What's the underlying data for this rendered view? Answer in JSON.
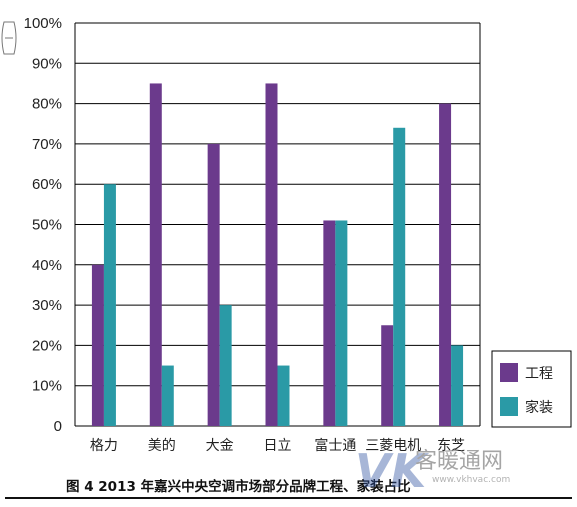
{
  "chart_data": {
    "type": "bar",
    "categories": [
      "格力",
      "美的",
      "大金",
      "日立",
      "富士通",
      "三菱电机",
      "东芝"
    ],
    "series": [
      {
        "name": "工程",
        "color": "#6b3a8c",
        "values": [
          40,
          85,
          70,
          85,
          51,
          25,
          80
        ]
      },
      {
        "name": "家装",
        "color": "#2a9aa6",
        "values": [
          60,
          15,
          30,
          15,
          51,
          74,
          20
        ]
      }
    ],
    "y_ticks": [
      "0",
      "10%",
      "20%",
      "30%",
      "40%",
      "50%",
      "60%",
      "70%",
      "80%",
      "90%",
      "100%"
    ],
    "ylim": [
      0,
      100
    ],
    "grid": true,
    "legend_position": "right-bottom",
    "caption": "图 4    2013 年嘉兴中央空调市场部分品牌工程、家装占比"
  },
  "watermark": {
    "logo": "VK",
    "text": "客暖通网",
    "url": "www.vkhvac.com"
  },
  "colors": {
    "gridline": "#000000",
    "background": "#ffffff"
  }
}
